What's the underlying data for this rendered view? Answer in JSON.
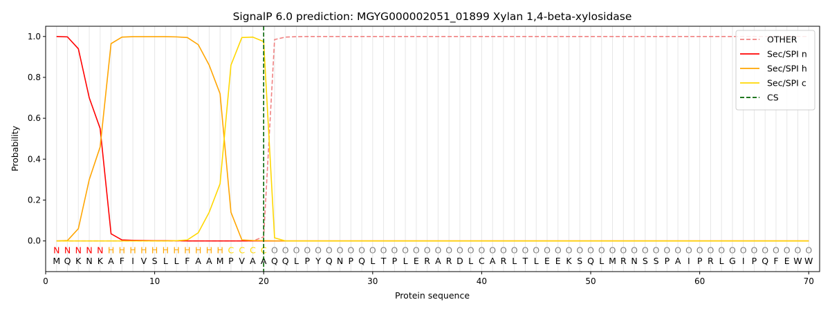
{
  "chart_data": {
    "type": "line",
    "title": "SignalP 6.0 prediction: MGYG000002051_01899 Xylan 1,4-beta-xylosidase",
    "xlabel": "Protein sequence",
    "ylabel": "Probability",
    "xlim": [
      0,
      71
    ],
    "ylim": [
      -0.15,
      1.05
    ],
    "xticks": [
      0,
      10,
      20,
      30,
      40,
      50,
      60,
      70
    ],
    "yticks": [
      0.0,
      0.2,
      0.4,
      0.6,
      0.8,
      1.0
    ],
    "ytick_labels": [
      "0.0",
      "0.2",
      "0.4",
      "0.6",
      "0.8",
      "1.0"
    ],
    "grid": "vertical lines at each residue",
    "legend_position": "top-right",
    "sequence": "MQKNKAFIVSLLFAAMPVAAQQLPYQNPQLTPLERARDLCARLTLEEKSQLMRNSSPAIPRLGIPQFEWW",
    "region_labels": "NNNNNHHHHHHHHHHHCCCCOOOOOOOOOOOOOOOOOOOOOOOOOOOOOOOOOOOOOOOOOOOOOOOOOO",
    "region_colors": {
      "N": "#ff0000",
      "H": "#ffa500",
      "C": "#ffd700",
      "O": "#808080"
    },
    "cleavage_site": 20,
    "series": [
      {
        "name": "OTHER",
        "color": "#f08080",
        "style": "dashed",
        "values": [
          0,
          0,
          0,
          0,
          0,
          0,
          0,
          0,
          0,
          0,
          0,
          0,
          0,
          0,
          0,
          0,
          0,
          0,
          0,
          0.02,
          0.985,
          0.997,
          0.999,
          1,
          1,
          1,
          1,
          1,
          1,
          1,
          1,
          1,
          1,
          1,
          1,
          1,
          1,
          1,
          1,
          1,
          1,
          1,
          1,
          1,
          1,
          1,
          1,
          1,
          1,
          1,
          1,
          1,
          1,
          1,
          1,
          1,
          1,
          1,
          1,
          1,
          1,
          1,
          1,
          1,
          1,
          1,
          1,
          1,
          1,
          1
        ]
      },
      {
        "name": "Sec/SPI n",
        "color": "#ff0000",
        "style": "solid",
        "values": [
          1.0,
          0.998,
          0.94,
          0.7,
          0.55,
          0.035,
          0.005,
          0.003,
          0.002,
          0.001,
          0.001,
          0.001,
          0,
          0,
          0,
          0,
          0,
          0,
          0,
          0,
          0,
          0,
          0,
          0,
          0,
          0,
          0,
          0,
          0,
          0,
          0,
          0,
          0,
          0,
          0,
          0,
          0,
          0,
          0,
          0,
          0,
          0,
          0,
          0,
          0,
          0,
          0,
          0,
          0,
          0,
          0,
          0,
          0,
          0,
          0,
          0,
          0,
          0,
          0,
          0,
          0,
          0,
          0,
          0,
          0,
          0,
          0,
          0,
          0,
          0
        ]
      },
      {
        "name": "Sec/SPI h",
        "color": "#ffa500",
        "style": "solid",
        "values": [
          0,
          0.002,
          0.06,
          0.3,
          0.46,
          0.965,
          0.997,
          0.999,
          0.999,
          0.999,
          0.999,
          0.998,
          0.995,
          0.96,
          0.86,
          0.72,
          0.14,
          0.005,
          0.002,
          0.001,
          0,
          0,
          0,
          0,
          0,
          0,
          0,
          0,
          0,
          0,
          0,
          0,
          0,
          0,
          0,
          0,
          0,
          0,
          0,
          0,
          0,
          0,
          0,
          0,
          0,
          0,
          0,
          0,
          0,
          0,
          0,
          0,
          0,
          0,
          0,
          0,
          0,
          0,
          0,
          0,
          0,
          0,
          0,
          0,
          0,
          0,
          0,
          0,
          0,
          0
        ]
      },
      {
        "name": "Sec/SPI c",
        "color": "#ffd700",
        "style": "solid",
        "values": [
          0,
          0,
          0,
          0,
          0,
          0,
          0,
          0,
          0,
          0,
          0,
          0.001,
          0.005,
          0.04,
          0.14,
          0.28,
          0.86,
          0.995,
          0.997,
          0.975,
          0.015,
          0,
          0,
          0,
          0,
          0,
          0,
          0,
          0,
          0,
          0,
          0,
          0,
          0,
          0,
          0,
          0,
          0,
          0,
          0,
          0,
          0,
          0,
          0,
          0,
          0,
          0,
          0,
          0,
          0,
          0,
          0,
          0,
          0,
          0,
          0,
          0,
          0,
          0,
          0,
          0,
          0,
          0,
          0,
          0,
          0,
          0,
          0,
          0,
          0
        ]
      }
    ],
    "legend": [
      {
        "label": "OTHER",
        "color": "#f08080",
        "style": "dashed"
      },
      {
        "label": "Sec/SPI n",
        "color": "#ff0000",
        "style": "solid"
      },
      {
        "label": "Sec/SPI h",
        "color": "#ffa500",
        "style": "solid"
      },
      {
        "label": "Sec/SPI c",
        "color": "#ffd700",
        "style": "solid"
      },
      {
        "label": "CS",
        "color": "#006400",
        "style": "dashed"
      }
    ]
  }
}
